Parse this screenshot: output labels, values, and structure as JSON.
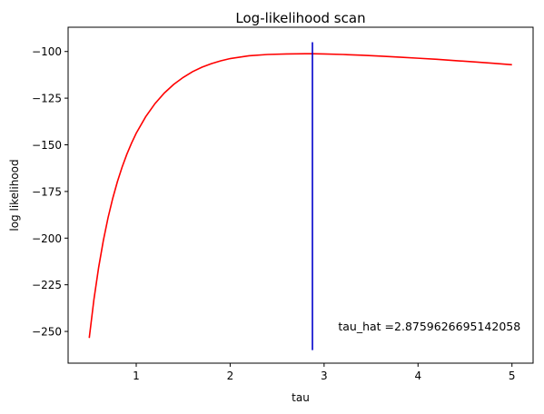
{
  "chart_data": {
    "type": "line",
    "title": "Log-likelihood scan",
    "xlabel": "tau",
    "ylabel": "log likelihood",
    "xlim": [
      0.275,
      5.225
    ],
    "ylim": [
      -267,
      -87
    ],
    "xticks": [
      1,
      2,
      3,
      4,
      5
    ],
    "yticks": [
      -100,
      -125,
      -150,
      -175,
      -200,
      -225,
      -250
    ],
    "grid": false,
    "series": [
      {
        "color": "#ff0000",
        "x": [
          0.5,
          0.55,
          0.6,
          0.65,
          0.7,
          0.75,
          0.8,
          0.85,
          0.9,
          0.95,
          1.0,
          1.1,
          1.2,
          1.3,
          1.4,
          1.5,
          1.6,
          1.7,
          1.8,
          1.9,
          2.0,
          2.2,
          2.4,
          2.6,
          2.8,
          2.876,
          3.0,
          3.2,
          3.4,
          3.6,
          3.8,
          4.0,
          4.2,
          4.4,
          4.6,
          4.8,
          5.0
        ],
        "y": [
          -253.5,
          -232.8,
          -215.7,
          -201.3,
          -189.1,
          -178.7,
          -169.7,
          -161.9,
          -155.1,
          -149.1,
          -143.8,
          -135.0,
          -127.9,
          -122.2,
          -117.6,
          -113.9,
          -110.8,
          -108.4,
          -106.5,
          -105.0,
          -103.8,
          -102.3,
          -101.6,
          -101.3,
          -101.2,
          -101.2,
          -101.3,
          -101.6,
          -102.0,
          -102.5,
          -103.0,
          -103.6,
          -104.2,
          -104.9,
          -105.6,
          -106.3,
          -107.1
        ]
      }
    ],
    "vline": {
      "x": 2.8759626695142058,
      "ymin": -260,
      "ymax": -95,
      "color": "#0000cc"
    },
    "annotation": {
      "text": "tau_hat =2.8759626695142058",
      "x": 3.15,
      "y": -249.5
    }
  }
}
